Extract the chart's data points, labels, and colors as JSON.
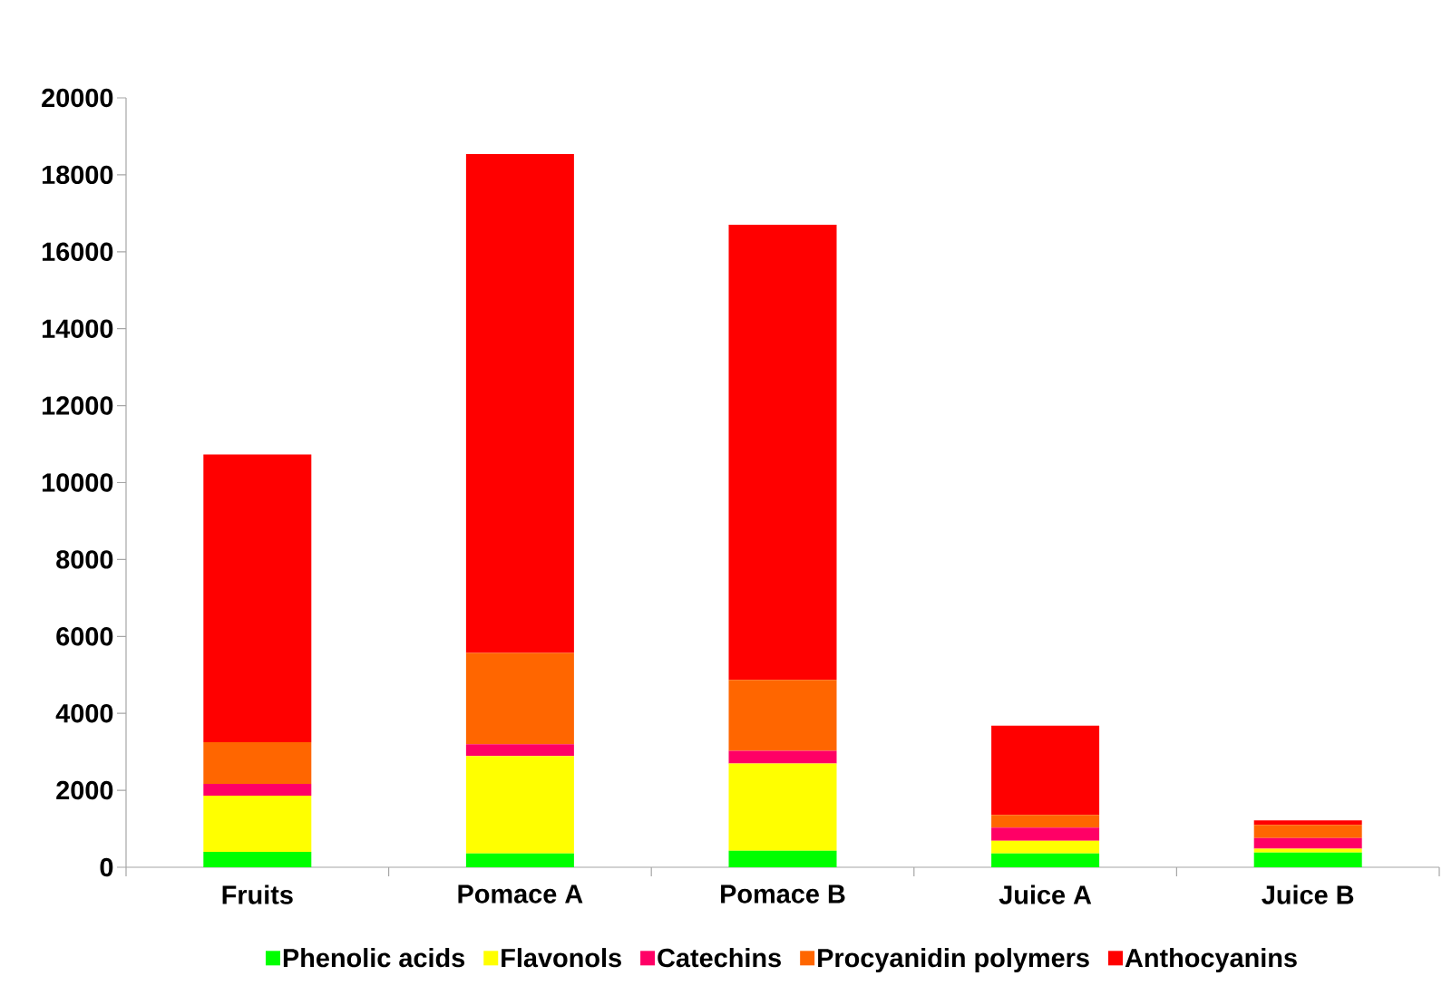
{
  "chart_data": {
    "type": "bar",
    "stacked": true,
    "categories": [
      "Fruits",
      "Pomace A",
      "Pomace B",
      "Juice A",
      "Juice B"
    ],
    "series": [
      {
        "name": "Phenolic acids",
        "color": "#00ff00",
        "values": [
          400,
          360,
          430,
          360,
          380
        ]
      },
      {
        "name": "Flavonols",
        "color": "#ffff00",
        "values": [
          1460,
          2530,
          2270,
          330,
          100
        ]
      },
      {
        "name": "Catechins",
        "color": "#ff0066",
        "values": [
          310,
          310,
          330,
          340,
          280
        ]
      },
      {
        "name": "Procyanidin polymers",
        "color": "#ff6600",
        "values": [
          1080,
          2370,
          1840,
          330,
          340
        ]
      },
      {
        "name": "Anthocyanins",
        "color": "#ff0000",
        "values": [
          7480,
          12970,
          11830,
          2320,
          120
        ]
      }
    ],
    "ylim": [
      0,
      20000
    ],
    "yticks": [
      0,
      2000,
      4000,
      6000,
      8000,
      10000,
      12000,
      14000,
      16000,
      18000,
      20000
    ],
    "grid": false,
    "legend": "bottom"
  }
}
